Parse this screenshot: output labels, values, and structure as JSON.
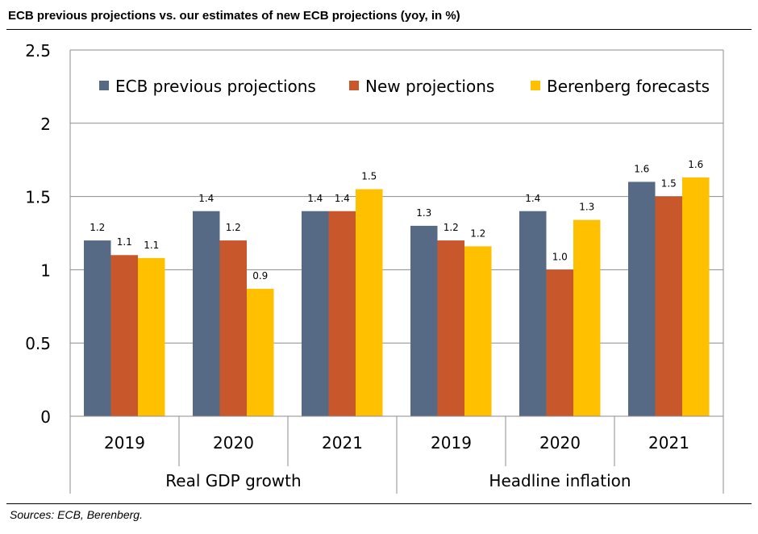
{
  "title": "ECB previous projections vs. our estimates of new ECB projections (yoy, in %)",
  "source": "Sources: ECB, Berenberg.",
  "chart_data": {
    "type": "bar",
    "groups": [
      {
        "name": "Real GDP growth",
        "categories": [
          "2019",
          "2020",
          "2021"
        ]
      },
      {
        "name": "Headline inflation",
        "categories": [
          "2019",
          "2020",
          "2021"
        ]
      }
    ],
    "categories": [
      "2019",
      "2020",
      "2021",
      "2019",
      "2020",
      "2021"
    ],
    "series": [
      {
        "name": "ECB previous projections",
        "color": "#566a86",
        "values": [
          1.2,
          1.4,
          1.4,
          1.3,
          1.4,
          1.6
        ],
        "labels": [
          "1.2",
          "1.4",
          "1.4",
          "1.3",
          "1.4",
          "1.6"
        ]
      },
      {
        "name": "New projections",
        "color": "#c8582c",
        "values": [
          1.1,
          1.2,
          1.4,
          1.2,
          1.0,
          1.5
        ],
        "labels": [
          "1.1",
          "1.2",
          "1.4",
          "1.2",
          "1.0",
          "1.5"
        ]
      },
      {
        "name": "Berenberg forecasts",
        "color": "#ffc000",
        "values": [
          1.08,
          0.87,
          1.55,
          1.16,
          1.34,
          1.63
        ],
        "labels": [
          "1.1",
          "0.9",
          "1.5",
          "1.2",
          "1.3",
          "1.6"
        ]
      }
    ],
    "yticks": [
      "0",
      "0.5",
      "1",
      "1.5",
      "2",
      "2.5"
    ],
    "ylim": [
      0,
      2.5
    ],
    "grid": true,
    "legend": "top"
  }
}
